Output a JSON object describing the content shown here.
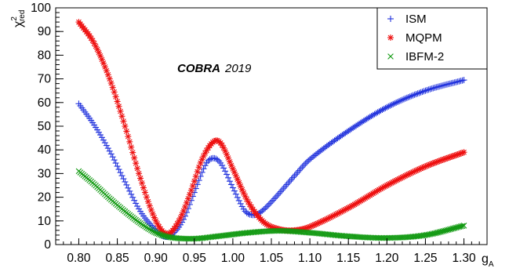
{
  "chart_data": {
    "type": "scatter",
    "ylabel_main": "χ",
    "ylabel_sup": "2",
    "ylabel_sub": "red",
    "xlabel_main": "g",
    "xlabel_sub": "A",
    "xlim": [
      0.77,
      1.33
    ],
    "ylim": [
      0,
      100
    ],
    "xticks": [
      0.8,
      0.85,
      0.9,
      0.95,
      1.0,
      1.05,
      1.1,
      1.15,
      1.2,
      1.25,
      1.3
    ],
    "xtick_labels": [
      "0.80",
      "0.85",
      "0.90",
      "0.95",
      "1.00",
      "1.05",
      "1.10",
      "1.15",
      "1.20",
      "1.25",
      "1.30"
    ],
    "yticks": [
      0,
      10,
      20,
      30,
      40,
      50,
      60,
      70,
      80,
      90,
      100
    ],
    "ytick_labels": [
      "0",
      "10",
      "20",
      "30",
      "40",
      "50",
      "60",
      "70",
      "80",
      "90",
      "100"
    ],
    "annotation": {
      "bold": "COBRA",
      "normal": "2019"
    },
    "legend_position": "top-right",
    "x_step": 0.002,
    "series": [
      {
        "name": "ISM",
        "marker": "plus",
        "color": "#2233dd",
        "anchors": [
          [
            0.8,
            59.5
          ],
          [
            0.82,
            50.5
          ],
          [
            0.84,
            39.5
          ],
          [
            0.86,
            26.5
          ],
          [
            0.88,
            14.0
          ],
          [
            0.9,
            6.0
          ],
          [
            0.91,
            3.5
          ],
          [
            0.92,
            4.0
          ],
          [
            0.935,
            10.0
          ],
          [
            0.95,
            22.0
          ],
          [
            0.965,
            34.0
          ],
          [
            0.975,
            36.5
          ],
          [
            0.985,
            34.0
          ],
          [
            1.0,
            24.0
          ],
          [
            1.015,
            14.5
          ],
          [
            1.025,
            12.5
          ],
          [
            1.035,
            13.5
          ],
          [
            1.05,
            18.0
          ],
          [
            1.08,
            29.0
          ],
          [
            1.1,
            36.0
          ],
          [
            1.15,
            48.0
          ],
          [
            1.2,
            58.0
          ],
          [
            1.25,
            65.0
          ],
          [
            1.3,
            69.5
          ]
        ]
      },
      {
        "name": "MQPM",
        "marker": "star",
        "color": "#ee1111",
        "anchors": [
          [
            0.8,
            94.0
          ],
          [
            0.82,
            85.0
          ],
          [
            0.84,
            70.0
          ],
          [
            0.86,
            50.0
          ],
          [
            0.88,
            28.0
          ],
          [
            0.9,
            10.0
          ],
          [
            0.915,
            4.5
          ],
          [
            0.93,
            10.0
          ],
          [
            0.945,
            22.0
          ],
          [
            0.96,
            36.0
          ],
          [
            0.975,
            43.5
          ],
          [
            0.985,
            42.5
          ],
          [
            1.0,
            32.0
          ],
          [
            1.02,
            18.0
          ],
          [
            1.04,
            9.5
          ],
          [
            1.06,
            6.5
          ],
          [
            1.08,
            6.0
          ],
          [
            1.1,
            7.5
          ],
          [
            1.15,
            15.5
          ],
          [
            1.2,
            25.0
          ],
          [
            1.25,
            33.0
          ],
          [
            1.3,
            39.0
          ]
        ]
      },
      {
        "name": "IBFM-2",
        "marker": "cross",
        "color": "#119911",
        "anchors": [
          [
            0.8,
            31.0
          ],
          [
            0.82,
            25.5
          ],
          [
            0.84,
            19.5
          ],
          [
            0.86,
            14.0
          ],
          [
            0.88,
            9.0
          ],
          [
            0.9,
            5.0
          ],
          [
            0.92,
            3.0
          ],
          [
            0.95,
            2.5
          ],
          [
            0.98,
            3.5
          ],
          [
            1.02,
            5.0
          ],
          [
            1.06,
            5.8
          ],
          [
            1.1,
            5.0
          ],
          [
            1.15,
            3.5
          ],
          [
            1.2,
            2.8
          ],
          [
            1.25,
            4.0
          ],
          [
            1.3,
            8.0
          ]
        ]
      }
    ]
  }
}
